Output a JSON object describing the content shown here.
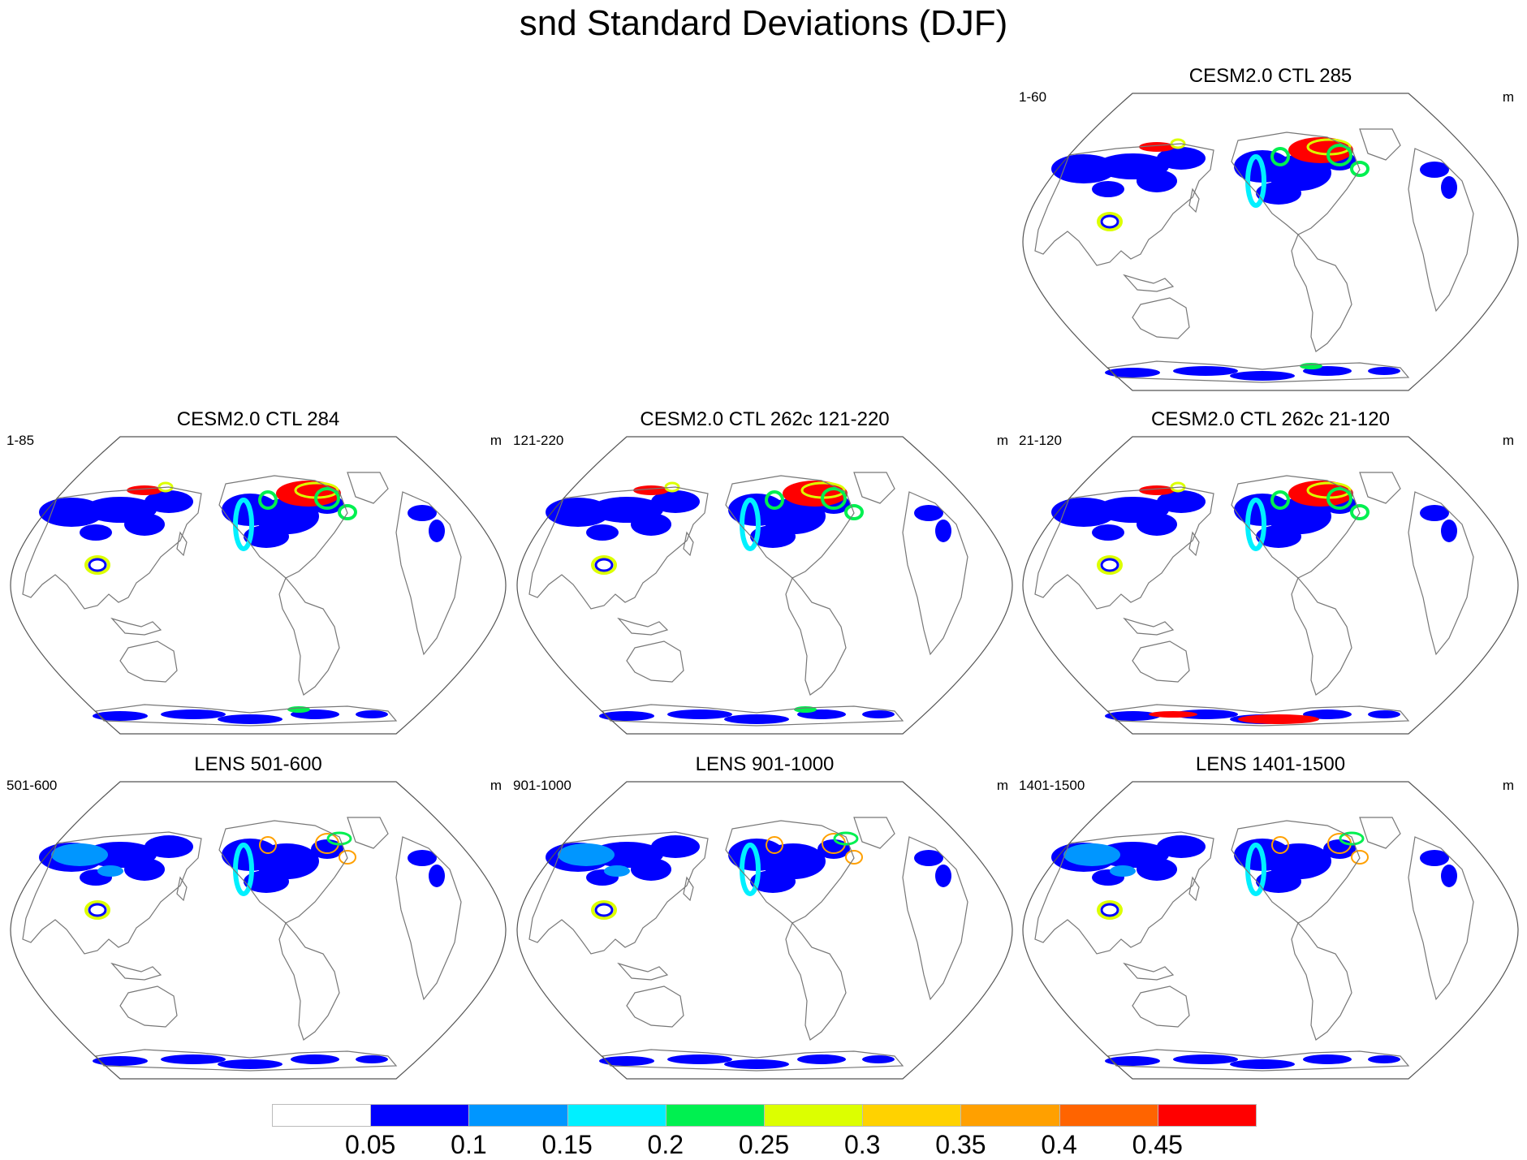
{
  "title": "snd Standard Deviations (DJF)",
  "panels": [
    {
      "title": "CESM2.0 CTL 285",
      "left_label": "1-60",
      "right_label": "m",
      "intensity": "high"
    },
    {
      "title": "CESM2.0 CTL 284",
      "left_label": "1-85",
      "right_label": "m",
      "intensity": "high"
    },
    {
      "title": "CESM2.0 CTL 262c 121-220",
      "left_label": "121-220",
      "right_label": "m",
      "intensity": "high"
    },
    {
      "title": "CESM2.0 CTL 262c 21-120",
      "left_label": "21-120",
      "right_label": "m",
      "intensity": "high_ant"
    },
    {
      "title": "LENS 501-600",
      "left_label": "501-600",
      "right_label": "m",
      "intensity": "low"
    },
    {
      "title": "LENS 901-1000",
      "left_label": "901-1000",
      "right_label": "m",
      "intensity": "low"
    },
    {
      "title": "LENS 1401-1500",
      "left_label": "1401-1500",
      "right_label": "m",
      "intensity": "low"
    }
  ],
  "colorbar": {
    "colors": [
      "#ffffff",
      "#0000ff",
      "#0096ff",
      "#00f0ff",
      "#00f050",
      "#dcff00",
      "#ffd200",
      "#ffa000",
      "#ff6400",
      "#ff0000"
    ],
    "labels": [
      "0.05",
      "0.1",
      "0.15",
      "0.2",
      "0.25",
      "0.3",
      "0.35",
      "0.4",
      "0.45"
    ]
  }
}
